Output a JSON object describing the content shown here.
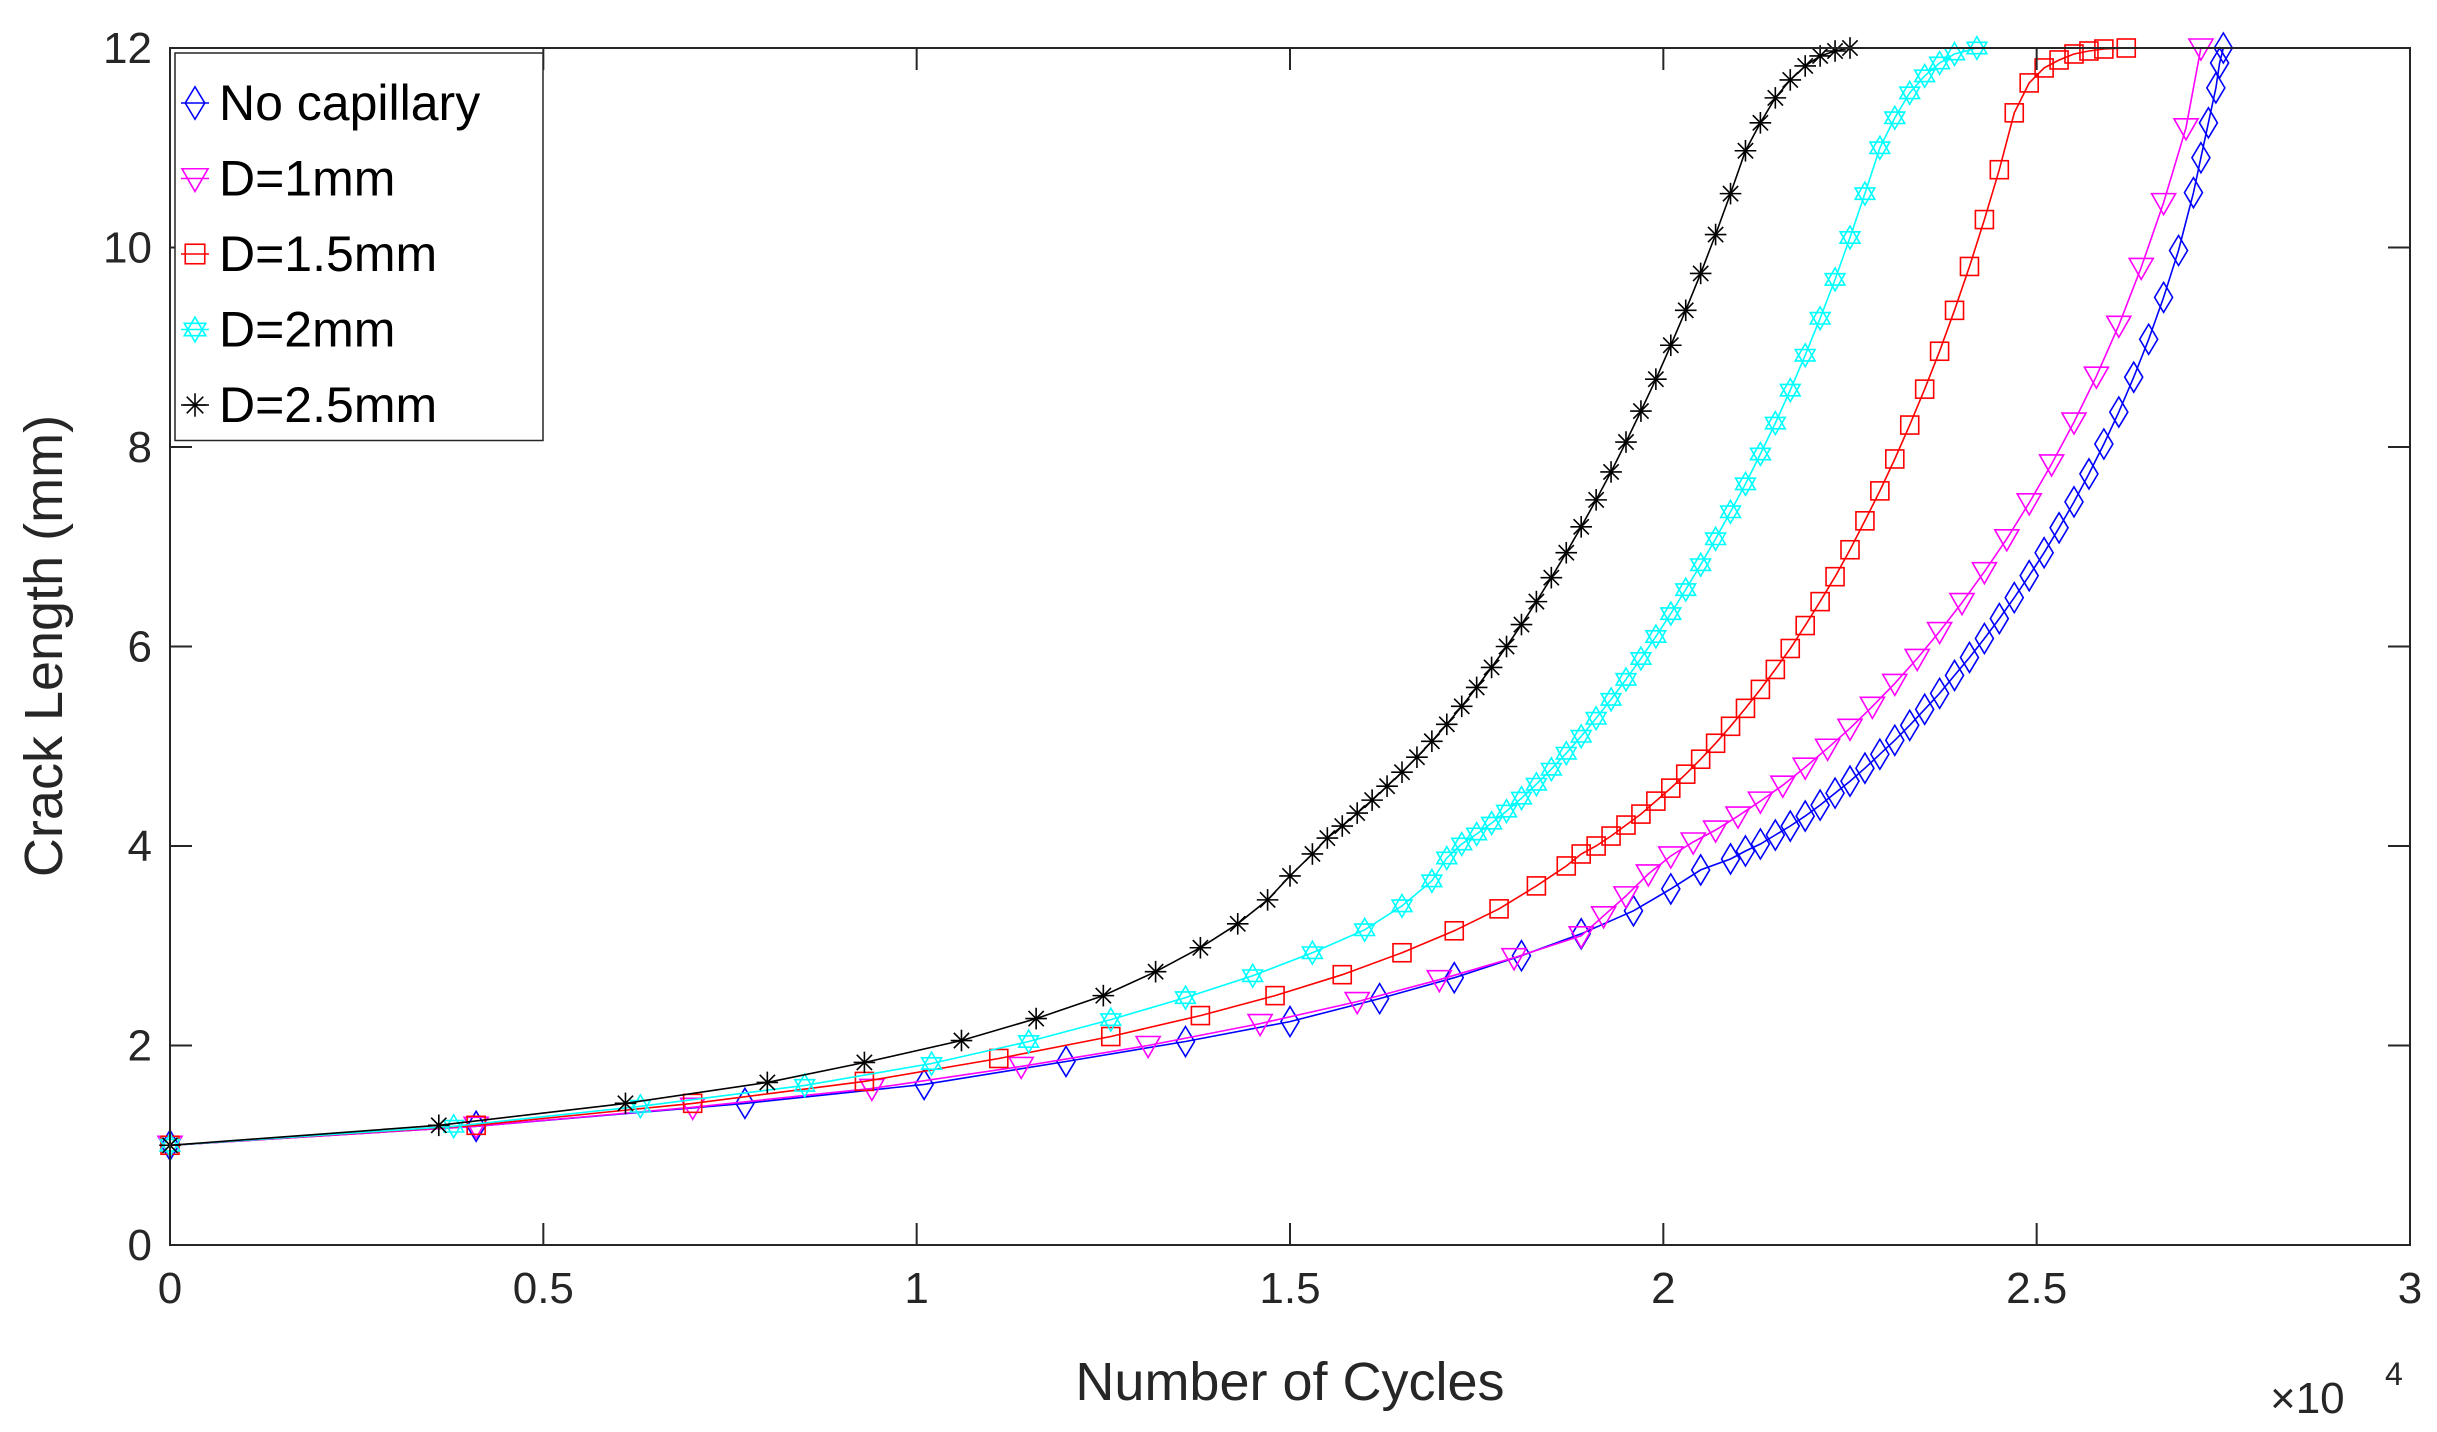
{
  "chart_data": {
    "type": "line",
    "title": "",
    "xlabel": "Number of Cycles",
    "ylabel": "Crack Length (mm)",
    "x_exponent_label": "×10",
    "x_exponent_power": "4",
    "xlim": [
      0,
      3
    ],
    "ylim": [
      0,
      12
    ],
    "xticks": [
      0,
      0.5,
      1,
      1.5,
      2,
      2.5,
      3
    ],
    "xtick_labels": [
      "0",
      "0.5",
      "1",
      "1.5",
      "2",
      "2.5",
      "3"
    ],
    "yticks": [
      0,
      2,
      4,
      6,
      8,
      10,
      12
    ],
    "ytick_labels": [
      "0",
      "2",
      "4",
      "6",
      "8",
      "10",
      "12"
    ],
    "grid": false,
    "legend_position": "top-left",
    "series": [
      {
        "name": "No capillary",
        "color": "#0000ff",
        "marker": "diamond",
        "x": [
          0,
          0.41,
          0.77,
          1.01,
          1.2,
          1.36,
          1.5,
          1.62,
          1.72,
          1.81,
          1.89,
          1.96,
          2.01,
          2.05,
          2.09,
          2.11,
          2.13,
          2.15,
          2.17,
          2.19,
          2.21,
          2.23,
          2.25,
          2.27,
          2.29,
          2.31,
          2.33,
          2.35,
          2.37,
          2.39,
          2.41,
          2.43,
          2.45,
          2.47,
          2.49,
          2.51,
          2.53,
          2.55,
          2.57,
          2.59,
          2.61,
          2.63,
          2.65,
          2.67,
          2.69,
          2.71,
          2.72,
          2.73,
          2.74,
          2.745,
          2.75
        ],
        "y": [
          1,
          1.19,
          1.42,
          1.61,
          1.84,
          2.04,
          2.24,
          2.47,
          2.68,
          2.9,
          3.12,
          3.35,
          3.57,
          3.76,
          3.87,
          3.95,
          4.02,
          4.11,
          4.2,
          4.3,
          4.41,
          4.53,
          4.65,
          4.78,
          4.92,
          5.06,
          5.21,
          5.37,
          5.53,
          5.71,
          5.89,
          6.08,
          6.28,
          6.49,
          6.71,
          6.94,
          7.19,
          7.45,
          7.73,
          8.03,
          8.35,
          8.7,
          9.08,
          9.5,
          9.97,
          10.55,
          10.9,
          11.25,
          11.6,
          11.85,
          12
        ]
      },
      {
        "name": "D=1mm",
        "color": "#ff00ff",
        "marker": "triangle-down",
        "x": [
          0,
          0.41,
          0.7,
          0.94,
          1.14,
          1.31,
          1.46,
          1.59,
          1.7,
          1.8,
          1.89,
          1.92,
          1.95,
          1.98,
          2.01,
          2.04,
          2.07,
          2.1,
          2.13,
          2.16,
          2.19,
          2.22,
          2.25,
          2.28,
          2.31,
          2.34,
          2.37,
          2.4,
          2.43,
          2.46,
          2.49,
          2.52,
          2.55,
          2.58,
          2.61,
          2.64,
          2.67,
          2.7,
          2.72
        ],
        "y": [
          1,
          1.19,
          1.38,
          1.57,
          1.79,
          2,
          2.22,
          2.44,
          2.66,
          2.88,
          3.1,
          3.3,
          3.5,
          3.72,
          3.9,
          4.04,
          4.16,
          4.3,
          4.45,
          4.61,
          4.79,
          4.98,
          5.18,
          5.4,
          5.63,
          5.88,
          6.15,
          6.44,
          6.75,
          7.08,
          7.44,
          7.83,
          8.25,
          8.71,
          9.22,
          9.8,
          10.45,
          11.2,
          12
        ]
      },
      {
        "name": "D=1.5mm",
        "color": "#ff0000",
        "marker": "square",
        "x": [
          0,
          0.41,
          0.7,
          0.93,
          1.11,
          1.26,
          1.38,
          1.48,
          1.57,
          1.65,
          1.72,
          1.78,
          1.83,
          1.87,
          1.89,
          1.91,
          1.93,
          1.95,
          1.97,
          1.99,
          2.01,
          2.03,
          2.05,
          2.07,
          2.09,
          2.11,
          2.13,
          2.15,
          2.17,
          2.19,
          2.21,
          2.23,
          2.25,
          2.27,
          2.29,
          2.31,
          2.33,
          2.35,
          2.37,
          2.39,
          2.41,
          2.43,
          2.45,
          2.47,
          2.49,
          2.51,
          2.53,
          2.55,
          2.57,
          2.59,
          2.62
        ],
        "y": [
          1,
          1.2,
          1.42,
          1.64,
          1.87,
          2.09,
          2.3,
          2.5,
          2.71,
          2.93,
          3.15,
          3.37,
          3.6,
          3.8,
          3.92,
          4.0,
          4.1,
          4.21,
          4.32,
          4.45,
          4.58,
          4.72,
          4.87,
          5.03,
          5.2,
          5.38,
          5.57,
          5.77,
          5.98,
          6.21,
          6.45,
          6.7,
          6.97,
          7.26,
          7.56,
          7.88,
          8.22,
          8.58,
          8.96,
          9.37,
          9.81,
          10.28,
          10.78,
          11.35,
          11.65,
          11.8,
          11.88,
          11.94,
          11.97,
          11.99,
          12
        ]
      },
      {
        "name": "D=2mm",
        "color": "#00ffff",
        "marker": "hexagram",
        "x": [
          0,
          0.38,
          0.63,
          0.85,
          1.02,
          1.15,
          1.26,
          1.36,
          1.45,
          1.53,
          1.6,
          1.65,
          1.69,
          1.71,
          1.73,
          1.75,
          1.77,
          1.79,
          1.81,
          1.83,
          1.85,
          1.87,
          1.89,
          1.91,
          1.93,
          1.95,
          1.97,
          1.99,
          2.01,
          2.03,
          2.05,
          2.07,
          2.09,
          2.11,
          2.13,
          2.15,
          2.17,
          2.19,
          2.21,
          2.23,
          2.25,
          2.27,
          2.29,
          2.31,
          2.33,
          2.35,
          2.37,
          2.39,
          2.42
        ],
        "y": [
          1,
          1.19,
          1.39,
          1.6,
          1.82,
          2.04,
          2.26,
          2.48,
          2.7,
          2.93,
          3.16,
          3.4,
          3.65,
          3.88,
          4.02,
          4.12,
          4.23,
          4.35,
          4.48,
          4.62,
          4.77,
          4.93,
          5.1,
          5.28,
          5.47,
          5.67,
          5.88,
          6.1,
          6.33,
          6.57,
          6.82,
          7.08,
          7.35,
          7.63,
          7.93,
          8.24,
          8.57,
          8.92,
          9.29,
          9.68,
          10.1,
          10.54,
          11.0,
          11.3,
          11.55,
          11.72,
          11.85,
          11.94,
          12
        ]
      },
      {
        "name": "D=2.5mm",
        "color": "#000000",
        "marker": "asterisk",
        "x": [
          0,
          0.36,
          0.61,
          0.8,
          0.93,
          1.06,
          1.16,
          1.25,
          1.32,
          1.38,
          1.43,
          1.47,
          1.5,
          1.53,
          1.55,
          1.57,
          1.59,
          1.61,
          1.63,
          1.65,
          1.67,
          1.69,
          1.71,
          1.73,
          1.75,
          1.77,
          1.79,
          1.81,
          1.83,
          1.85,
          1.87,
          1.89,
          1.91,
          1.93,
          1.95,
          1.97,
          1.99,
          2.01,
          2.03,
          2.05,
          2.07,
          2.09,
          2.11,
          2.13,
          2.15,
          2.17,
          2.19,
          2.21,
          2.23,
          2.25
        ],
        "y": [
          1,
          1.2,
          1.42,
          1.63,
          1.83,
          2.05,
          2.27,
          2.5,
          2.74,
          2.98,
          3.22,
          3.46,
          3.7,
          3.92,
          4.08,
          4.2,
          4.33,
          4.46,
          4.6,
          4.74,
          4.89,
          5.05,
          5.22,
          5.4,
          5.59,
          5.79,
          6.0,
          6.22,
          6.45,
          6.69,
          6.94,
          7.2,
          7.47,
          7.75,
          8.05,
          8.36,
          8.68,
          9.02,
          9.37,
          9.74,
          10.13,
          10.54,
          10.97,
          11.25,
          11.5,
          11.68,
          11.82,
          11.92,
          11.97,
          12
        ]
      }
    ]
  }
}
